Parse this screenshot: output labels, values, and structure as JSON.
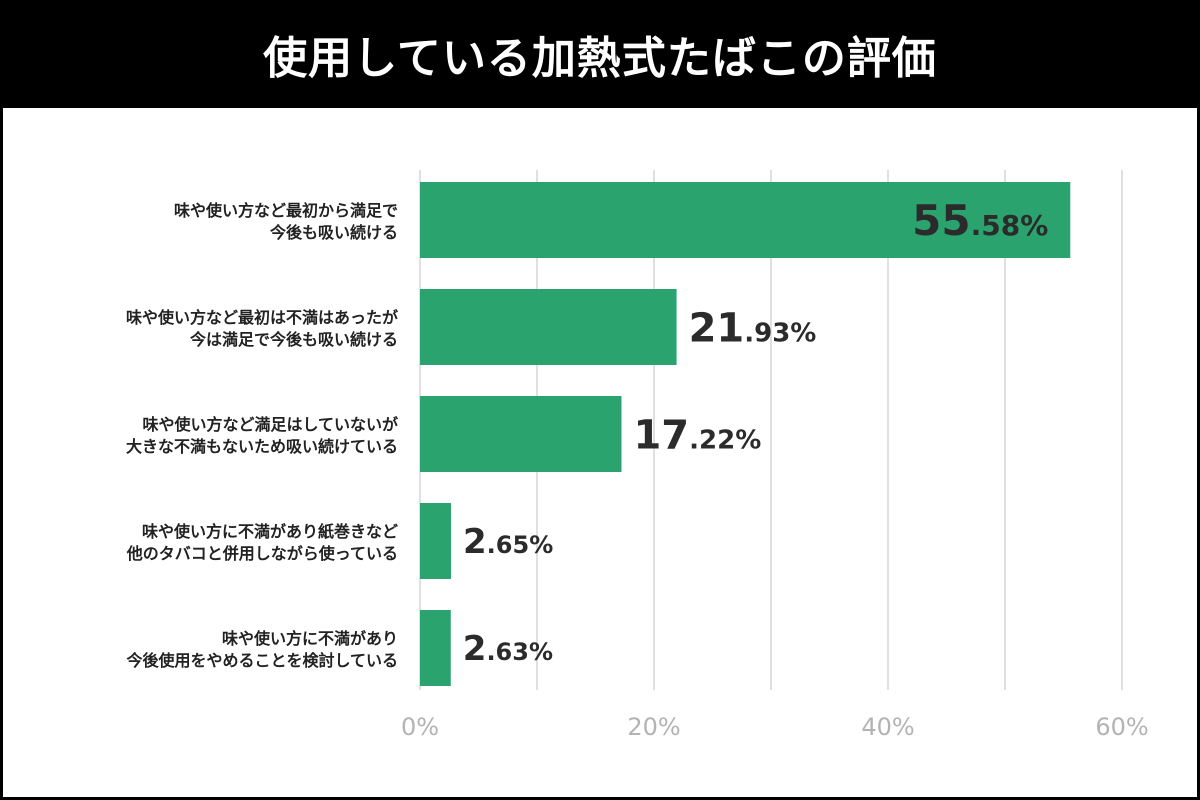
{
  "header": {
    "title": "使用している加熱式たばこの評価"
  },
  "chart_data": {
    "type": "bar",
    "orientation": "horizontal",
    "title": "使用している加熱式たばこの評価",
    "categories": [
      [
        "味や使い方など最初から満足で",
        "今後も吸い続ける"
      ],
      [
        "味や使い方など最初は不満はあったが",
        "今は満足で今後も吸い続ける"
      ],
      [
        "味や使い方など満足はしていないが",
        "大きな不満もないため吸い続けている"
      ],
      [
        "味や使い方に不満があり紙巻きなど",
        "他のタバコと併用しながら使っている"
      ],
      [
        "味や使い方に不満があり",
        "今後使用をやめることを検討している"
      ]
    ],
    "values": [
      55.58,
      21.93,
      17.22,
      2.65,
      2.63
    ],
    "value_labels": [
      {
        "int": "55",
        "dec": ".58%"
      },
      {
        "int": "21",
        "dec": ".93%"
      },
      {
        "int": "17",
        "dec": ".22%"
      },
      {
        "int": "2",
        "dec": ".65%"
      },
      {
        "int": "2",
        "dec": ".63%"
      }
    ],
    "xlim": [
      0,
      60
    ],
    "xticks": [
      "0%",
      "20%",
      "40%",
      "60%"
    ],
    "grid": true,
    "bar_color": "#2ba36f"
  }
}
